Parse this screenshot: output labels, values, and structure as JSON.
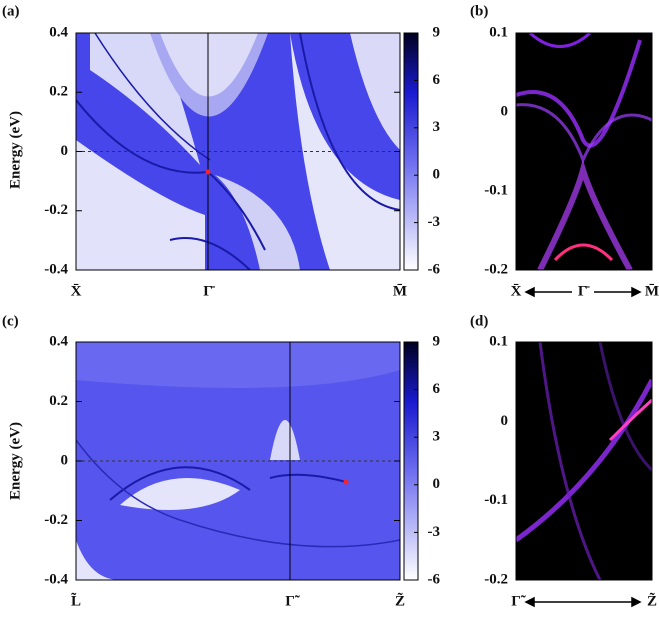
{
  "chart_data": [
    {
      "type": "heatmap",
      "panel": "(a)",
      "ylabel": "Energy (eV)",
      "categories": [
        "X̄",
        "Γ̄",
        "M̄"
      ],
      "ylim": [
        -0.4,
        0.4
      ],
      "yticks": [
        -0.4,
        -0.2,
        0,
        0.2,
        0.4
      ],
      "clim": [
        -6,
        9
      ],
      "cticks": [
        -6,
        -3,
        0,
        3,
        6,
        9
      ]
    },
    {
      "type": "heatmap",
      "panel": "(b)",
      "categories": [
        "X̄",
        "Γ̄",
        "M̄"
      ],
      "ylim": [
        -0.2,
        0.1
      ],
      "yticks": [
        -0.2,
        -0.1,
        0,
        0.1
      ]
    },
    {
      "type": "heatmap",
      "panel": "(c)",
      "ylabel": "Energy (eV)",
      "categories": [
        "L̃",
        "Γ̃",
        "Z̃"
      ],
      "ylim": [
        -0.4,
        0.4
      ],
      "yticks": [
        -0.4,
        -0.2,
        0,
        0.2,
        0.4
      ],
      "clim": [
        -6,
        9
      ],
      "cticks": [
        -6,
        -3,
        0,
        3,
        6,
        9
      ]
    },
    {
      "type": "heatmap",
      "panel": "(d)",
      "categories": [
        "Γ̃",
        "Z̃"
      ],
      "ylim": [
        -0.2,
        0.1
      ],
      "yticks": [
        -0.2,
        -0.1,
        0,
        0.1
      ]
    }
  ]
}
